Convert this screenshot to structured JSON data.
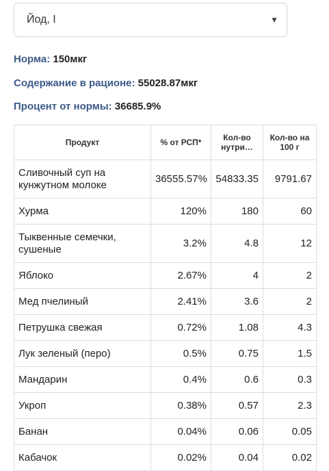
{
  "select": {
    "value": "Йод, I"
  },
  "summary": {
    "norm_label": "Норма:",
    "norm_value": "150мкг",
    "content_label": "Содержание в рационе:",
    "content_value": "55028.87мкг",
    "percent_label": "Процент от нормы:",
    "percent_value": "36685.9%"
  },
  "table": {
    "headers": [
      "Продукт",
      "% от РСП*",
      "Кол-во нутри…",
      "Кол-во на 100 г"
    ],
    "rows": [
      {
        "product": "Сливочный суп на кунжутном молоке",
        "pct": "36555.57%",
        "amount": "54833.35",
        "per100": "9791.67"
      },
      {
        "product": "Хурма",
        "pct": "120%",
        "amount": "180",
        "per100": "60"
      },
      {
        "product": "Тыквенные семечки, сушеные",
        "pct": "3.2%",
        "amount": "4.8",
        "per100": "12"
      },
      {
        "product": "Яблоко",
        "pct": "2.67%",
        "amount": "4",
        "per100": "2"
      },
      {
        "product": "Мед пчелиный",
        "pct": "2.41%",
        "amount": "3.6",
        "per100": "2"
      },
      {
        "product": "Петрушка свежая",
        "pct": "0.72%",
        "amount": "1.08",
        "per100": "4.3"
      },
      {
        "product": "Лук зеленый (перо)",
        "pct": "0.5%",
        "amount": "0.75",
        "per100": "1.5"
      },
      {
        "product": "Мандарин",
        "pct": "0.4%",
        "amount": "0.6",
        "per100": "0.3"
      },
      {
        "product": "Укроп",
        "pct": "0.38%",
        "amount": "0.57",
        "per100": "2.3"
      },
      {
        "product": "Банан",
        "pct": "0.04%",
        "amount": "0.06",
        "per100": "0.05"
      },
      {
        "product": "Кабачок",
        "pct": "0.02%",
        "amount": "0.04",
        "per100": "0.02"
      }
    ]
  }
}
